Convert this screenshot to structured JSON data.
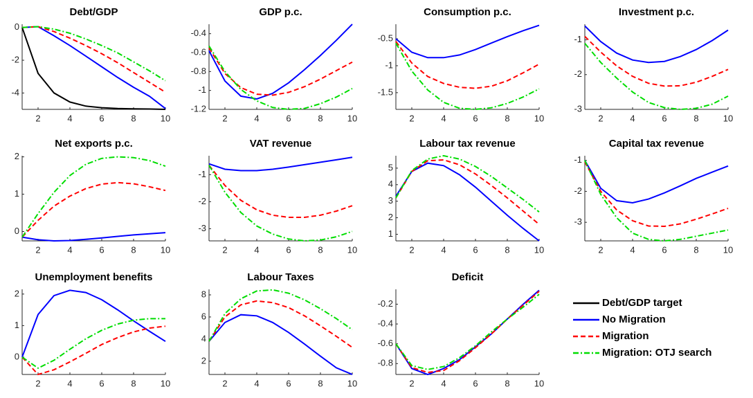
{
  "chart_data": [
    {
      "type": "line",
      "title": "Debt/GDP",
      "x": [
        1,
        2,
        3,
        4,
        5,
        6,
        7,
        8,
        9,
        10
      ],
      "xlim": [
        1,
        10
      ],
      "xticks": [
        2,
        4,
        6,
        8,
        10
      ],
      "ylim": [
        -5,
        0.2
      ],
      "yticks": [
        -4,
        -2,
        0
      ],
      "series": [
        {
          "name": "Debt/GDP target",
          "color": "#000000",
          "linestyle": "solid",
          "values": [
            0,
            -2.8,
            -4,
            -4.55,
            -4.8,
            -4.9,
            -4.95,
            -4.97,
            -4.98,
            -5
          ]
        },
        {
          "name": "No Migration",
          "color": "#0000ff",
          "linestyle": "solid",
          "values": [
            0,
            0.05,
            -0.5,
            -1.1,
            -1.75,
            -2.4,
            -3.05,
            -3.65,
            -4.2,
            -4.95
          ]
        },
        {
          "name": "Migration",
          "color": "#ff0000",
          "linestyle": "dashed",
          "values": [
            0,
            0.05,
            -0.25,
            -0.65,
            -1.1,
            -1.6,
            -2.15,
            -2.75,
            -3.35,
            -3.95
          ]
        },
        {
          "name": "Migration: OTJ search",
          "color": "#00dd00",
          "linestyle": "dashdot",
          "values": [
            0,
            0.05,
            -0.1,
            -0.35,
            -0.7,
            -1.1,
            -1.55,
            -2.1,
            -2.65,
            -3.25
          ]
        }
      ]
    },
    {
      "type": "line",
      "title": "GDP p.c.",
      "x": [
        1,
        2,
        3,
        4,
        5,
        6,
        7,
        8,
        9,
        10
      ],
      "xlim": [
        1,
        10
      ],
      "xticks": [
        2,
        4,
        6,
        8,
        10
      ],
      "ylim": [
        -1.2,
        -0.3
      ],
      "yticks": [
        -1.2,
        -1,
        -0.8,
        -0.6,
        -0.4
      ],
      "series": [
        {
          "color": "#0000ff",
          "linestyle": "solid",
          "values": [
            -0.58,
            -0.9,
            -1.06,
            -1.09,
            -1.03,
            -0.92,
            -0.78,
            -0.63,
            -0.47,
            -0.3
          ]
        },
        {
          "color": "#ff0000",
          "linestyle": "dashed",
          "values": [
            -0.55,
            -0.82,
            -0.97,
            -1.04,
            -1.05,
            -1.02,
            -0.96,
            -0.88,
            -0.79,
            -0.7
          ]
        },
        {
          "color": "#00dd00",
          "linestyle": "dashdot",
          "values": [
            -0.53,
            -0.8,
            -0.99,
            -1.11,
            -1.18,
            -1.2,
            -1.19,
            -1.14,
            -1.07,
            -0.98
          ]
        }
      ]
    },
    {
      "type": "line",
      "title": "Consumption p.c.",
      "x": [
        1,
        2,
        3,
        4,
        5,
        6,
        7,
        8,
        9,
        10
      ],
      "xlim": [
        1,
        10
      ],
      "xticks": [
        2,
        4,
        6,
        8,
        10
      ],
      "ylim": [
        -1.81,
        -0.23
      ],
      "yticks": [
        -1.5,
        -1,
        -0.5
      ],
      "series": [
        {
          "color": "#0000ff",
          "linestyle": "solid",
          "values": [
            -0.5,
            -0.75,
            -0.85,
            -0.85,
            -0.8,
            -0.7,
            -0.58,
            -0.46,
            -0.35,
            -0.25
          ]
        },
        {
          "color": "#ff0000",
          "linestyle": "dashed",
          "values": [
            -0.55,
            -0.95,
            -1.2,
            -1.33,
            -1.4,
            -1.42,
            -1.38,
            -1.28,
            -1.13,
            -0.97
          ]
        },
        {
          "color": "#00dd00",
          "linestyle": "dashdot",
          "values": [
            -0.58,
            -1.1,
            -1.45,
            -1.68,
            -1.79,
            -1.81,
            -1.78,
            -1.7,
            -1.58,
            -1.43
          ]
        }
      ]
    },
    {
      "type": "line",
      "title": "Investment p.c.",
      "x": [
        1,
        2,
        3,
        4,
        5,
        6,
        7,
        8,
        9,
        10
      ],
      "xlim": [
        1,
        10
      ],
      "xticks": [
        2,
        4,
        6,
        8,
        10
      ],
      "ylim": [
        -3,
        -0.55
      ],
      "yticks": [
        -3,
        -2,
        -1
      ],
      "series": [
        {
          "color": "#0000ff",
          "linestyle": "solid",
          "values": [
            -0.6,
            -1.05,
            -1.38,
            -1.58,
            -1.65,
            -1.62,
            -1.48,
            -1.28,
            -1.02,
            -0.72
          ]
        },
        {
          "color": "#ff0000",
          "linestyle": "dashed",
          "values": [
            -0.9,
            -1.35,
            -1.75,
            -2.05,
            -2.25,
            -2.33,
            -2.32,
            -2.22,
            -2.05,
            -1.85
          ]
        },
        {
          "color": "#00dd00",
          "linestyle": "dashdot",
          "values": [
            -1.1,
            -1.65,
            -2.1,
            -2.5,
            -2.8,
            -2.95,
            -3,
            -2.97,
            -2.85,
            -2.62
          ]
        }
      ]
    },
    {
      "type": "line",
      "title": "Net exports p.c.",
      "x": [
        1,
        2,
        3,
        4,
        5,
        6,
        7,
        8,
        9,
        10
      ],
      "xlim": [
        1,
        10
      ],
      "xticks": [
        2,
        4,
        6,
        8,
        10
      ],
      "ylim": [
        -0.25,
        2.03
      ],
      "yticks": [
        0,
        1,
        2
      ],
      "series": [
        {
          "color": "#0000ff",
          "linestyle": "solid",
          "values": [
            -0.15,
            -0.22,
            -0.25,
            -0.24,
            -0.21,
            -0.17,
            -0.13,
            -0.09,
            -0.06,
            -0.03
          ]
        },
        {
          "color": "#ff0000",
          "linestyle": "dashed",
          "values": [
            -0.15,
            0.3,
            0.68,
            0.95,
            1.15,
            1.27,
            1.31,
            1.28,
            1.2,
            1.1
          ]
        },
        {
          "color": "#00dd00",
          "linestyle": "dashdot",
          "values": [
            -0.15,
            0.48,
            1.05,
            1.5,
            1.8,
            1.96,
            2,
            1.98,
            1.9,
            1.75
          ]
        }
      ]
    },
    {
      "type": "line",
      "title": "VAT revenue",
      "x": [
        1,
        2,
        3,
        4,
        5,
        6,
        7,
        8,
        9,
        10
      ],
      "xlim": [
        1,
        10
      ],
      "xticks": [
        2,
        4,
        6,
        8,
        10
      ],
      "ylim": [
        -3.45,
        -0.3
      ],
      "yticks": [
        -3,
        -2,
        -1
      ],
      "series": [
        {
          "color": "#0000ff",
          "linestyle": "solid",
          "values": [
            -0.6,
            -0.8,
            -0.85,
            -0.85,
            -0.8,
            -0.72,
            -0.63,
            -0.54,
            -0.45,
            -0.36
          ]
        },
        {
          "color": "#ff0000",
          "linestyle": "dashed",
          "values": [
            -0.65,
            -1.4,
            -1.95,
            -2.3,
            -2.5,
            -2.58,
            -2.58,
            -2.5,
            -2.35,
            -2.15
          ]
        },
        {
          "color": "#00dd00",
          "linestyle": "dashdot",
          "values": [
            -0.65,
            -1.65,
            -2.4,
            -2.9,
            -3.2,
            -3.38,
            -3.45,
            -3.42,
            -3.3,
            -3.1
          ]
        }
      ]
    },
    {
      "type": "line",
      "title": "Labour tax revenue",
      "x": [
        1,
        2,
        3,
        4,
        5,
        6,
        7,
        8,
        9,
        10
      ],
      "xlim": [
        1,
        10
      ],
      "xticks": [
        2,
        4,
        6,
        8,
        10
      ],
      "ylim": [
        0.6,
        5.75
      ],
      "yticks": [
        1,
        2,
        3,
        4,
        5
      ],
      "series": [
        {
          "color": "#0000ff",
          "linestyle": "solid",
          "values": [
            3.3,
            4.8,
            5.3,
            5.15,
            4.6,
            3.85,
            3,
            2.15,
            1.35,
            0.6
          ]
        },
        {
          "color": "#ff0000",
          "linestyle": "dashed",
          "values": [
            3.2,
            4.8,
            5.45,
            5.5,
            5.2,
            4.65,
            3.95,
            3.2,
            2.4,
            1.6
          ]
        },
        {
          "color": "#00dd00",
          "linestyle": "dashdot",
          "values": [
            3.2,
            4.85,
            5.55,
            5.75,
            5.55,
            5.1,
            4.5,
            3.8,
            3.1,
            2.35
          ]
        }
      ]
    },
    {
      "type": "line",
      "title": "Capital tax revenue",
      "x": [
        1,
        2,
        3,
        4,
        5,
        6,
        7,
        8,
        9,
        10
      ],
      "xlim": [
        1,
        10
      ],
      "xticks": [
        2,
        4,
        6,
        8,
        10
      ],
      "ylim": [
        -3.6,
        -0.85
      ],
      "yticks": [
        -3,
        -2,
        -1
      ],
      "series": [
        {
          "color": "#0000ff",
          "linestyle": "solid",
          "values": [
            -1,
            -1.9,
            -2.3,
            -2.37,
            -2.25,
            -2.05,
            -1.82,
            -1.58,
            -1.38,
            -1.18
          ]
        },
        {
          "color": "#ff0000",
          "linestyle": "dashed",
          "values": [
            -1.05,
            -2,
            -2.6,
            -2.95,
            -3.12,
            -3.13,
            -3.05,
            -2.9,
            -2.73,
            -2.55
          ]
        },
        {
          "color": "#00dd00",
          "linestyle": "dashdot",
          "values": [
            -1,
            -2.1,
            -2.85,
            -3.35,
            -3.55,
            -3.6,
            -3.55,
            -3.45,
            -3.35,
            -3.25
          ]
        }
      ]
    },
    {
      "type": "line",
      "title": "Unemployment benefits",
      "x": [
        1,
        2,
        3,
        4,
        5,
        6,
        7,
        8,
        9,
        10
      ],
      "xlim": [
        1,
        10
      ],
      "xticks": [
        2,
        4,
        6,
        8,
        10
      ],
      "ylim": [
        -0.55,
        2.15
      ],
      "yticks": [
        0,
        1,
        2
      ],
      "series": [
        {
          "color": "#0000ff",
          "linestyle": "solid",
          "values": [
            0,
            1.35,
            1.95,
            2.12,
            2.05,
            1.82,
            1.5,
            1.15,
            0.82,
            0.5
          ]
        },
        {
          "color": "#ff0000",
          "linestyle": "dashed",
          "values": [
            0,
            -0.55,
            -0.4,
            -0.15,
            0.12,
            0.4,
            0.62,
            0.8,
            0.92,
            0.98
          ]
        },
        {
          "color": "#00dd00",
          "linestyle": "dashdot",
          "values": [
            0,
            -0.35,
            -0.1,
            0.25,
            0.58,
            0.85,
            1.05,
            1.17,
            1.22,
            1.22
          ]
        }
      ]
    },
    {
      "type": "line",
      "title": "Labour Taxes",
      "x": [
        1,
        2,
        3,
        4,
        5,
        6,
        7,
        8,
        9,
        10
      ],
      "xlim": [
        1,
        10
      ],
      "xticks": [
        2,
        4,
        6,
        8,
        10
      ],
      "ylim": [
        0.8,
        8.5
      ],
      "yticks": [
        2,
        4,
        6,
        8
      ],
      "series": [
        {
          "color": "#0000ff",
          "linestyle": "solid",
          "values": [
            3.8,
            5.5,
            6.2,
            6.1,
            5.5,
            4.6,
            3.55,
            2.45,
            1.4,
            0.8
          ]
        },
        {
          "color": "#ff0000",
          "linestyle": "dashed",
          "values": [
            3.8,
            6,
            7.1,
            7.45,
            7.3,
            6.85,
            6.1,
            5.2,
            4.25,
            3.25
          ]
        },
        {
          "color": "#00dd00",
          "linestyle": "dashdot",
          "values": [
            3.8,
            6.3,
            7.65,
            8.35,
            8.45,
            8.15,
            7.55,
            6.75,
            5.85,
            4.85
          ]
        }
      ]
    },
    {
      "type": "line",
      "title": "Deficit",
      "x": [
        1,
        2,
        3,
        4,
        5,
        6,
        7,
        8,
        9,
        10
      ],
      "xlim": [
        1,
        10
      ],
      "xticks": [
        2,
        4,
        6,
        8,
        10
      ],
      "ylim": [
        -0.91,
        -0.05
      ],
      "yticks": [
        -0.8,
        -0.6,
        -0.4,
        -0.2
      ],
      "series": [
        {
          "color": "#0000ff",
          "linestyle": "solid",
          "values": [
            -0.6,
            -0.85,
            -0.91,
            -0.85,
            -0.76,
            -0.63,
            -0.5,
            -0.35,
            -0.2,
            -0.06
          ]
        },
        {
          "color": "#ff0000",
          "linestyle": "dashed",
          "values": [
            -0.6,
            -0.84,
            -0.89,
            -0.87,
            -0.77,
            -0.64,
            -0.5,
            -0.35,
            -0.21,
            -0.07
          ]
        },
        {
          "color": "#00dd00",
          "linestyle": "dashdot",
          "values": [
            -0.6,
            -0.82,
            -0.86,
            -0.83,
            -0.74,
            -0.62,
            -0.48,
            -0.35,
            -0.23,
            -0.1
          ]
        }
      ]
    }
  ]
}
